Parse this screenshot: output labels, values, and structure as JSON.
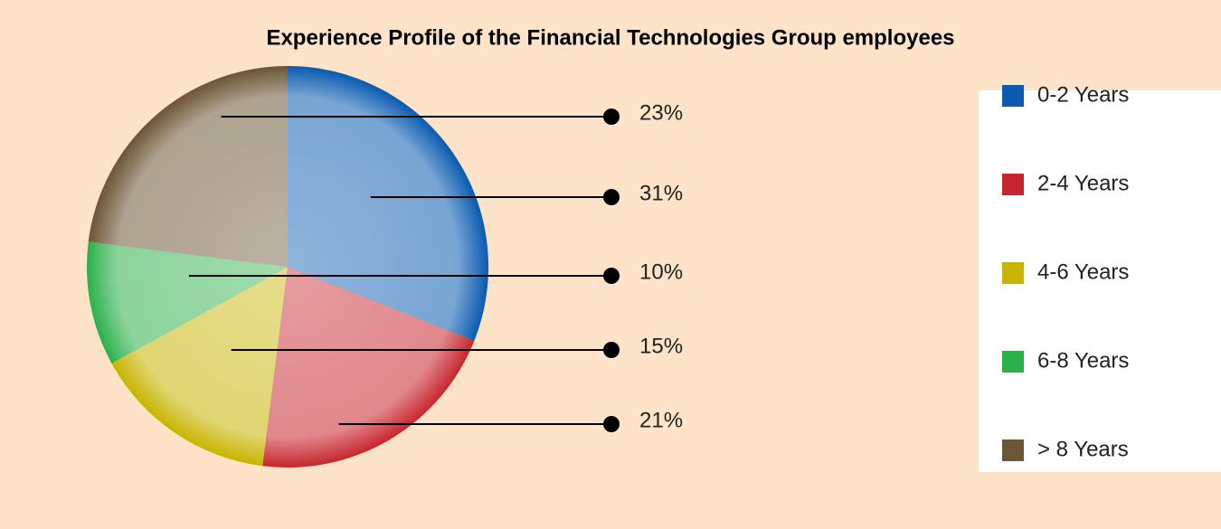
{
  "chart_data": {
    "type": "pie",
    "title": "Experience Profile of the Financial Technologies Group employees",
    "categories": [
      "0-2 Years",
      "2-4 Years",
      "4-6 Years",
      "6-8 Years",
      "> 8 Years"
    ],
    "values": [
      31,
      21,
      15,
      10,
      23
    ],
    "value_labels": [
      "31%",
      "21%",
      "15%",
      "10%",
      "23%"
    ],
    "colors": [
      "#0a5bb0",
      "#c8262e",
      "#c8b400",
      "#2db04b",
      "#6b5535"
    ],
    "legend": "right"
  }
}
